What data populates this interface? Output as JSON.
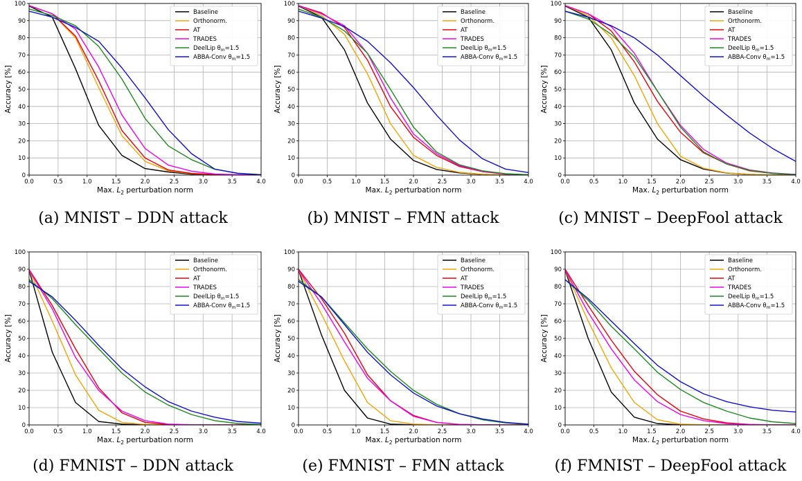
{
  "colors": {
    "Baseline": "#000000",
    "Orthonorm.": "#f5a300",
    "AT": "#e8000b",
    "TRADES": "#ee00ee",
    "DeelLip": "#1a8a1a",
    "ABBA-Conv": "#1010d0"
  },
  "legend_labels": [
    "Baseline",
    "Orthonorm.",
    "AT",
    "TRADES",
    "DeelLip θ_m=1.5",
    "ABBA-Conv θ_m=1.5"
  ],
  "legend_placement": "top-right",
  "chart_data": [
    {
      "type": "line",
      "caption": "(a) MNIST – DDN attack",
      "xlabel": "Max. L2 perturbation norm",
      "ylabel": "Accuracy [%]",
      "xlim": [
        0,
        4
      ],
      "ylim": [
        0,
        100
      ],
      "xticks": [
        "0.0",
        "0.5",
        "1.0",
        "1.5",
        "2.0",
        "2.5",
        "3.0",
        "3.5",
        "4.0"
      ],
      "yticks": [
        "0",
        "10",
        "20",
        "30",
        "40",
        "50",
        "60",
        "70",
        "80",
        "90",
        "100"
      ],
      "grid": true,
      "x": [
        0,
        0.4,
        0.8,
        1.2,
        1.6,
        2.0,
        2.4,
        2.8,
        3.2,
        3.6,
        4.0
      ],
      "series": [
        {
          "name": "Baseline",
          "values": [
            98.5,
            92,
            62,
            29,
            11.5,
            3.8,
            1.8,
            0.5,
            0.2,
            0.1,
            0.0
          ]
        },
        {
          "name": "Orthonorm.",
          "values": [
            98.8,
            94,
            80,
            51,
            23,
            8,
            2.5,
            0.8,
            0.3,
            0.1,
            0.0
          ]
        },
        {
          "name": "AT",
          "values": [
            98.8,
            94,
            81,
            55,
            26,
            10,
            3,
            1,
            0.3,
            0.1,
            0.0
          ]
        },
        {
          "name": "TRADES",
          "values": [
            98.8,
            94,
            85,
            63,
            35,
            15.5,
            5.8,
            2.3,
            0.6,
            0.2,
            0.0
          ]
        },
        {
          "name": "DeelLip θm=1.5",
          "values": [
            96.8,
            93,
            87,
            75,
            56,
            33,
            17,
            9,
            3.4,
            1.1,
            0.2
          ]
        },
        {
          "name": "ABBA-Conv θm=1.5",
          "values": [
            95.5,
            92,
            86,
            78,
            62.5,
            45,
            26.5,
            12.5,
            3.5,
            1.0,
            0.2
          ]
        }
      ]
    },
    {
      "type": "line",
      "caption": "(b) MNIST – FMN attack",
      "xlabel": "Max. L2 perturbation norm",
      "ylabel": "Accuracy [%]",
      "xlim": [
        0,
        4
      ],
      "ylim": [
        0,
        100
      ],
      "xticks": [
        "0.0",
        "0.5",
        "1.0",
        "1.5",
        "2.0",
        "2.5",
        "3.0",
        "3.5",
        "4.0"
      ],
      "yticks": [
        "0",
        "10",
        "20",
        "30",
        "40",
        "50",
        "60",
        "70",
        "80",
        "90",
        "100"
      ],
      "grid": true,
      "x": [
        0,
        0.4,
        0.8,
        1.2,
        1.6,
        2.0,
        2.4,
        2.8,
        3.2,
        3.6,
        4.0
      ],
      "series": [
        {
          "name": "Baseline",
          "values": [
            98.5,
            92,
            73,
            42,
            21,
            8.5,
            3.3,
            1.3,
            0.4,
            0.1,
            0.0
          ]
        },
        {
          "name": "Orthonorm.",
          "values": [
            98.8,
            93,
            82,
            59,
            30,
            11.5,
            4.5,
            1.6,
            0.5,
            0.1,
            0.0
          ]
        },
        {
          "name": "AT",
          "values": [
            98.8,
            94.5,
            86,
            67,
            40,
            22,
            11.5,
            5,
            2,
            0.6,
            0.1
          ]
        },
        {
          "name": "TRADES",
          "values": [
            98.8,
            94,
            87,
            71,
            45,
            24,
            12.5,
            5.5,
            2.2,
            0.6,
            0.1
          ]
        },
        {
          "name": "DeelLip θm=1.5",
          "values": [
            96.7,
            92,
            84,
            71,
            50,
            28,
            13.5,
            6,
            2.5,
            0.8,
            0.2
          ]
        },
        {
          "name": "ABBA-Conv θm=1.5",
          "values": [
            95.5,
            91.5,
            86.5,
            78,
            65.5,
            51,
            35,
            20.5,
            9.5,
            3.5,
            1.5
          ]
        }
      ]
    },
    {
      "type": "line",
      "caption": "(c) MNIST – DeepFool attack",
      "xlabel": "Max. L2 perturbation norm",
      "ylabel": "Accuracy [%]",
      "xlim": [
        0,
        4
      ],
      "ylim": [
        0,
        100
      ],
      "xticks": [
        "0.0",
        "0.5",
        "1.0",
        "1.5",
        "2.0",
        "2.5",
        "3.0",
        "3.5",
        "4.0"
      ],
      "yticks": [
        "0",
        "10",
        "20",
        "30",
        "40",
        "50",
        "60",
        "70",
        "80",
        "90",
        "100"
      ],
      "grid": true,
      "x": [
        0,
        0.4,
        0.8,
        1.2,
        1.6,
        2.0,
        2.4,
        2.8,
        3.2,
        3.6,
        4.0
      ],
      "series": [
        {
          "name": "Baseline",
          "values": [
            98.5,
            92,
            73,
            42,
            21,
            9,
            3.5,
            1.2,
            0.4,
            0.1,
            0.0
          ]
        },
        {
          "name": "Orthonorm.",
          "values": [
            98.8,
            93,
            80,
            58,
            30,
            11,
            4,
            1.3,
            0.4,
            0.1,
            0.0
          ]
        },
        {
          "name": "AT",
          "values": [
            98.8,
            94,
            84,
            66,
            43,
            25,
            13,
            6.5,
            2.5,
            1.0,
            0.3
          ]
        },
        {
          "name": "TRADES",
          "values": [
            98.8,
            94,
            86.5,
            71,
            49,
            29,
            15,
            7,
            3,
            1.2,
            0.4
          ]
        },
        {
          "name": "DeelLip θm=1.5",
          "values": [
            95.5,
            91,
            82,
            69,
            49,
            28,
            13.5,
            6.5,
            2.8,
            1.0,
            0.3
          ]
        },
        {
          "name": "ABBA-Conv θm=1.5",
          "values": [
            95.5,
            92,
            87,
            80,
            70,
            58,
            46,
            35,
            24.5,
            15.5,
            8
          ]
        }
      ]
    },
    {
      "type": "line",
      "caption": "(d) FMNIST – DDN attack",
      "xlabel": "Max. L2 perturbation norm",
      "ylabel": "Accuracy [%]",
      "xlim": [
        0,
        4
      ],
      "ylim": [
        0,
        100
      ],
      "xticks": [
        "0.0",
        "0.5",
        "1.0",
        "1.5",
        "2.0",
        "2.5",
        "3.0",
        "3.5",
        "4.0"
      ],
      "yticks": [
        "0",
        "10",
        "20",
        "30",
        "40",
        "50",
        "60",
        "70",
        "80",
        "90",
        "100"
      ],
      "grid": true,
      "x": [
        0,
        0.4,
        0.8,
        1.2,
        1.6,
        2.0,
        2.4,
        2.8,
        3.2,
        3.6,
        4.0
      ],
      "series": [
        {
          "name": "Baseline",
          "values": [
            89.5,
            42,
            13,
            2,
            0.5,
            0.1,
            0.0,
            0.0,
            0.0,
            0.0,
            0.0
          ]
        },
        {
          "name": "Orthonorm.",
          "values": [
            89.5,
            60,
            29,
            8.5,
            1.5,
            0.3,
            0.1,
            0.0,
            0.0,
            0.0,
            0.0
          ]
        },
        {
          "name": "AT",
          "values": [
            89.8,
            69,
            44,
            21.5,
            7,
            1.5,
            0.2,
            0.0,
            0.0,
            0.0,
            0.0
          ]
        },
        {
          "name": "TRADES",
          "values": [
            89.5,
            67,
            39,
            20,
            8,
            2.5,
            0.5,
            0.1,
            0.0,
            0.0,
            0.0
          ]
        },
        {
          "name": "DeelLip θm=1.5",
          "values": [
            84,
            73,
            58,
            44,
            30,
            19,
            11.5,
            6,
            2.5,
            0.8,
            0.2
          ]
        },
        {
          "name": "ABBA-Conv θm=1.5",
          "values": [
            83,
            74,
            60.5,
            46,
            32.5,
            22,
            13.5,
            8,
            4.5,
            2,
            1
          ]
        }
      ]
    },
    {
      "type": "line",
      "caption": "(e) FMNIST – FMN attack",
      "xlabel": "Max. L2 perturbation norm",
      "ylabel": "Accuracy [%]",
      "xlim": [
        0,
        4
      ],
      "ylim": [
        0,
        100
      ],
      "xticks": [
        "0.0",
        "0.5",
        "1.0",
        "1.5",
        "2.0",
        "2.5",
        "3.0",
        "3.5",
        "4.0"
      ],
      "yticks": [
        "0",
        "10",
        "20",
        "30",
        "40",
        "50",
        "60",
        "70",
        "80",
        "90",
        "100"
      ],
      "grid": true,
      "x": [
        0,
        0.4,
        0.8,
        1.2,
        1.6,
        2.0,
        2.4,
        2.8,
        3.2,
        3.6,
        4.0
      ],
      "series": [
        {
          "name": "Baseline",
          "values": [
            89.5,
            52,
            20,
            4,
            0.5,
            0.1,
            0.0,
            0.0,
            0.0,
            0.0,
            0.0
          ]
        },
        {
          "name": "Orthonorm.",
          "values": [
            89.5,
            64,
            37,
            13,
            2.5,
            0.5,
            0.1,
            0.0,
            0.0,
            0.0,
            0.0
          ]
        },
        {
          "name": "AT",
          "values": [
            90,
            73,
            53,
            29,
            14,
            5.5,
            1.5,
            0.3,
            0.1,
            0.0,
            0.0
          ]
        },
        {
          "name": "TRADES",
          "values": [
            89.5,
            70,
            48,
            27,
            14,
            5,
            1.5,
            0.3,
            0.1,
            0.0,
            0.0
          ]
        },
        {
          "name": "DeelLip θm=1.5",
          "values": [
            84,
            74,
            59,
            44,
            31,
            20,
            12,
            6.5,
            3,
            1.2,
            0.3
          ]
        },
        {
          "name": "ABBA-Conv θm=1.5",
          "values": [
            83,
            74,
            58,
            42,
            29,
            18.5,
            11,
            6.5,
            3.5,
            1.5,
            0.5
          ]
        }
      ]
    },
    {
      "type": "line",
      "caption": "(f) FMNIST – DeepFool attack",
      "xlabel": "Max. L2 perturbation norm",
      "ylabel": "Accuracy [%]",
      "xlim": [
        0,
        4
      ],
      "ylim": [
        0,
        100
      ],
      "xticks": [
        "0.0",
        "0.5",
        "1.0",
        "1.5",
        "2.0",
        "2.5",
        "3.0",
        "3.5",
        "4.0"
      ],
      "yticks": [
        "0",
        "10",
        "20",
        "30",
        "40",
        "50",
        "60",
        "70",
        "80",
        "90",
        "100"
      ],
      "grid": true,
      "x": [
        0,
        0.4,
        0.8,
        1.2,
        1.6,
        2.0,
        2.4,
        2.8,
        3.2,
        3.6,
        4.0
      ],
      "series": [
        {
          "name": "Baseline",
          "values": [
            89.5,
            50,
            19,
            4.5,
            0.8,
            0.1,
            0.0,
            0.0,
            0.0,
            0.0,
            0.0
          ]
        },
        {
          "name": "Orthonorm.",
          "values": [
            89.5,
            60,
            33,
            13,
            3,
            0.5,
            0.1,
            0.0,
            0.0,
            0.0,
            0.0
          ]
        },
        {
          "name": "AT",
          "values": [
            90,
            69,
            49,
            31,
            17.5,
            8,
            3.5,
            1.2,
            0.3,
            0.1,
            0.0
          ]
        },
        {
          "name": "TRADES",
          "values": [
            89.5,
            65,
            44,
            26,
            13.5,
            6,
            2.5,
            0.8,
            0.2,
            0.0,
            0.0
          ]
        },
        {
          "name": "DeelLip θm=1.5",
          "values": [
            84,
            72,
            57,
            44,
            30.5,
            20.5,
            13,
            8,
            4,
            1.8,
            0.8
          ]
        },
        {
          "name": "ABBA-Conv θm=1.5",
          "values": [
            84,
            73,
            60,
            47,
            34.5,
            25,
            18,
            13.5,
            10.5,
            8.5,
            7.5
          ]
        }
      ]
    }
  ]
}
